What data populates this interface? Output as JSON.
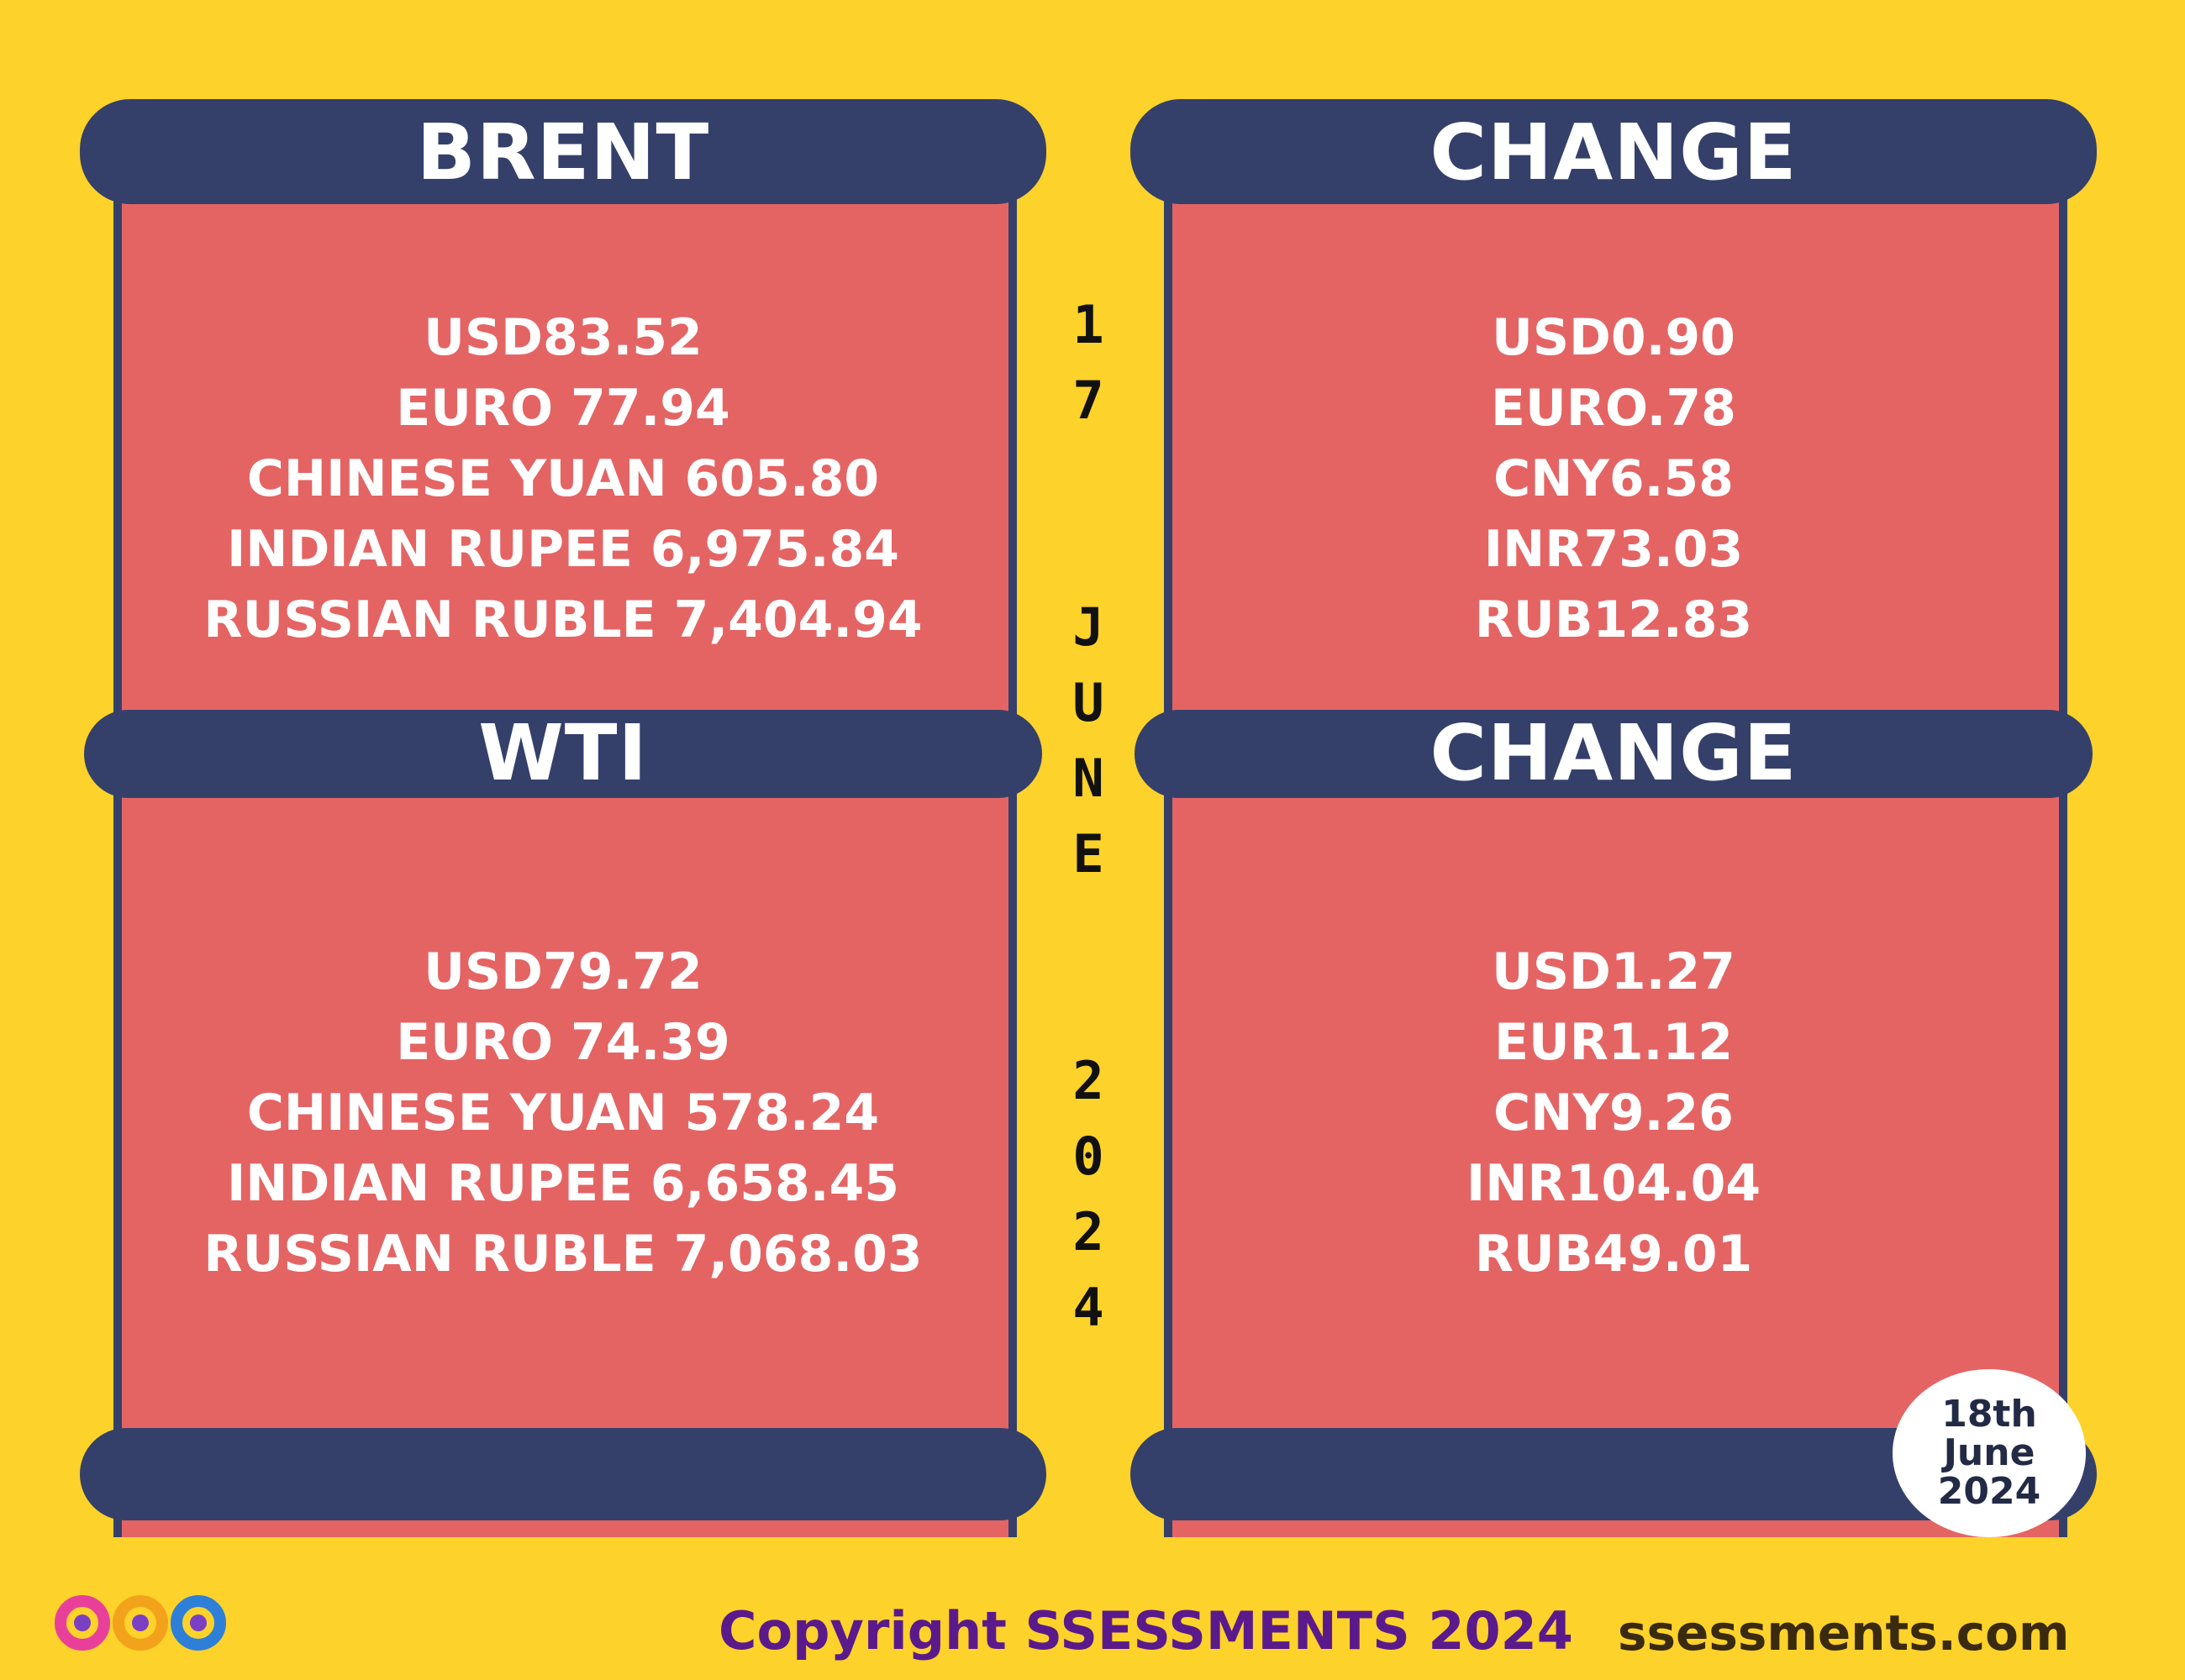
{
  "brent": {
    "title": "BRENT",
    "lines": [
      "USD83.52",
      "EURO 77.94",
      "CHINESE YUAN 605.80",
      "INDIAN RUPEE 6,975.84",
      "RUSSIAN RUBLE 7,404.94"
    ]
  },
  "brent_change": {
    "title": "CHANGE",
    "lines": [
      "USD0.90",
      "EURO.78",
      "CNY6.58",
      "INR73.03",
      "RUB12.83"
    ]
  },
  "wti": {
    "title": "WTI",
    "lines": [
      "USD79.72",
      "EURO 74.39",
      "CHINESE YUAN 578.24",
      "INDIAN RUPEE 6,658.45",
      "RUSSIAN RUBLE 7,068.03"
    ]
  },
  "wti_change": {
    "title": "CHANGE",
    "lines": [
      "USD1.27",
      "EUR1.12",
      "CNY9.26",
      "INR104.04",
      "RUB49.01"
    ]
  },
  "vertical_date": {
    "day": [
      "1",
      "7"
    ],
    "month": [
      "J",
      "U",
      "N",
      "E"
    ],
    "year": [
      "2",
      "0",
      "2",
      "4"
    ]
  },
  "stamp": {
    "line1": "18th",
    "line2": "June",
    "line3": "2024"
  },
  "footer": {
    "copyright": "Copyright SSESSMENTS 2024",
    "url": "ssessments.com"
  },
  "colors": {
    "background": "#FDD22A",
    "panel": "#E46464",
    "band": "#34406A",
    "copyright": "#5A1A8C"
  }
}
